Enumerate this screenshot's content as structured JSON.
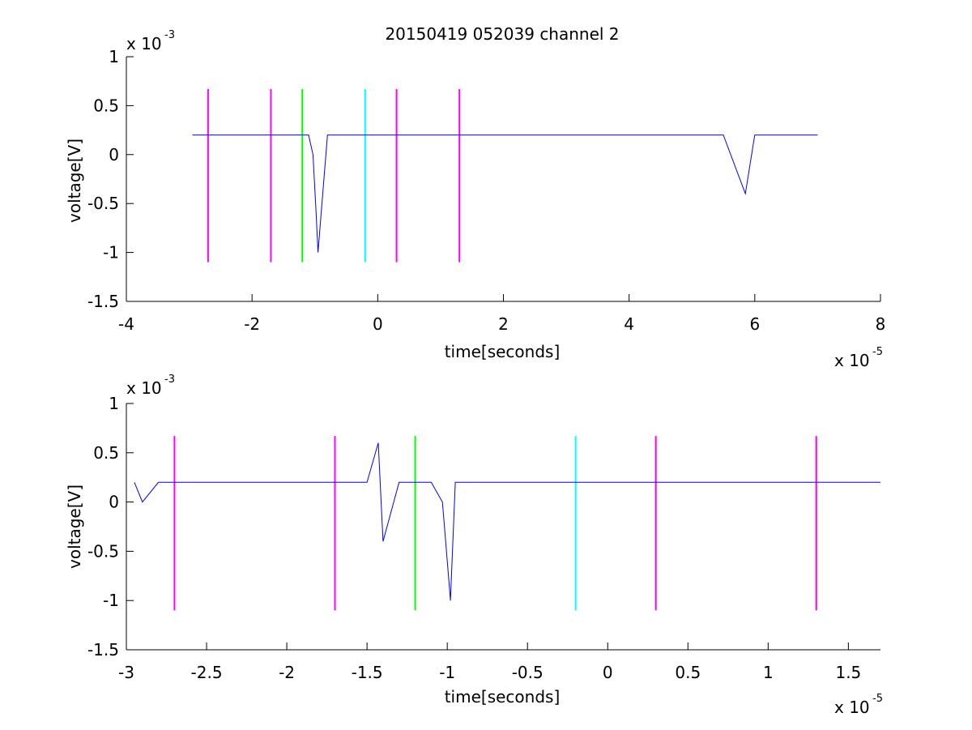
{
  "figure": {
    "title": "20150419 052039 channel 2"
  },
  "colors": {
    "signal": "#0000ff",
    "magenta": "#ff00ff",
    "green": "#00ff00",
    "cyan": "#00ffff",
    "axes": "#000000"
  },
  "chart_data": [
    {
      "type": "line",
      "title": "20150419 052039 channel 2",
      "xlabel": "time[seconds]",
      "ylabel": "voltage[V]",
      "x_multiplier": "x 10",
      "x_exponent": "-5",
      "y_multiplier": "x 10",
      "y_exponent": "-3",
      "xlim": [
        -4e-05,
        8e-05
      ],
      "ylim": [
        -0.0015,
        0.001
      ],
      "xticks": [
        -4e-05,
        -2e-05,
        0,
        2e-05,
        4e-05,
        6e-05,
        8e-05
      ],
      "xtick_labels": [
        "-4",
        "-2",
        "0",
        "2",
        "4",
        "6",
        "8"
      ],
      "yticks": [
        -0.0015,
        -0.001,
        -0.0005,
        0,
        0.0005,
        0.001
      ],
      "ytick_labels": [
        "-1.5",
        "-1",
        "-0.5",
        "0",
        "0.5",
        "1"
      ],
      "grid": false,
      "series": [
        {
          "color": "#0000ff",
          "x": [
            -2.95e-05,
            -2.7e-05,
            -2.5e-05,
            -2.2e-05,
            -2e-05,
            -1.7e-05,
            -1.55e-05,
            -1.43e-05,
            -1.3e-05,
            -1.2e-05,
            -1.1e-05,
            -1.03e-05,
            -9.8e-06,
            -9.5e-06,
            -8e-06,
            -6e-06,
            -4e-06,
            -2e-06,
            0,
            2e-06,
            5e-06,
            1e-05,
            1.5e-05,
            2e-05,
            2.5e-05,
            3e-05,
            3.5e-05,
            4e-05,
            4.5e-05,
            5e-05,
            5.5e-05,
            5.85e-05,
            6e-05,
            6.5e-05,
            7e-05
          ],
          "y": [
            0.0002,
            0.0002,
            0.0002,
            0.0002,
            0.0002,
            0.0002,
            0.0002,
            0.0002,
            0.0002,
            0.0002,
            0.0002,
            0.0,
            -0.0006,
            -0.001,
            0.0002,
            0.0002,
            0.0002,
            0.0002,
            0.0002,
            0.0002,
            0.0002,
            0.0002,
            0.0002,
            0.0002,
            0.0002,
            0.0002,
            0.0002,
            0.0002,
            0.0002,
            0.0002,
            0.0002,
            -0.0004,
            0.0002,
            0.0002,
            0.0002
          ]
        }
      ],
      "markers": [
        {
          "x": -2.7e-05,
          "color": "#ff00ff"
        },
        {
          "x": -1.7e-05,
          "color": "#ff00ff"
        },
        {
          "x": -1.2e-05,
          "color": "#00ff00"
        },
        {
          "x": -2e-06,
          "color": "#00ffff"
        },
        {
          "x": 3e-06,
          "color": "#ff00ff"
        },
        {
          "x": 1.3e-05,
          "color": "#ff00ff"
        }
      ],
      "marker_range": [
        -0.0011,
        0.00067
      ]
    },
    {
      "type": "line",
      "xlabel": "time[seconds]",
      "ylabel": "voltage[V]",
      "x_multiplier": "x 10",
      "x_exponent": "-5",
      "y_multiplier": "x 10",
      "y_exponent": "-3",
      "xlim": [
        -3e-05,
        1.7e-05
      ],
      "ylim": [
        -0.0015,
        0.001
      ],
      "xticks": [
        -3e-05,
        -2.5e-05,
        -2e-05,
        -1.5e-05,
        -1e-05,
        -5e-06,
        0,
        5e-06,
        1e-05,
        1.5e-05
      ],
      "xtick_labels": [
        "-3",
        "-2.5",
        "-2",
        "-1.5",
        "-1",
        "-0.5",
        "0",
        "0.5",
        "1",
        "1.5"
      ],
      "yticks": [
        -0.0015,
        -0.001,
        -0.0005,
        0,
        0.0005,
        0.001
      ],
      "ytick_labels": [
        "-1.5",
        "-1",
        "-0.5",
        "0",
        "0.5",
        "1"
      ],
      "grid": false,
      "series": [
        {
          "color": "#0000ff",
          "x": [
            -2.95e-05,
            -2.9e-05,
            -2.8e-05,
            -2.7e-05,
            -2.6e-05,
            -2.5e-05,
            -2.3e-05,
            -2.1e-05,
            -1.9e-05,
            -1.7e-05,
            -1.5e-05,
            -1.43e-05,
            -1.4e-05,
            -1.3e-05,
            -1.2e-05,
            -1.1e-05,
            -1.03e-05,
            -1e-05,
            -9.8e-06,
            -9.5e-06,
            -8e-06,
            -6e-06,
            -4e-06,
            -2e-06,
            0,
            2e-06,
            4e-06,
            6e-06,
            8e-06,
            1e-05,
            1.2e-05,
            1.4e-05,
            1.6e-05,
            1.7e-05
          ],
          "y": [
            0.0002,
            0.0,
            0.0002,
            0.0002,
            0.0002,
            0.0002,
            0.0002,
            0.0002,
            0.0002,
            0.0002,
            0.0002,
            0.0006,
            -0.0004,
            0.0002,
            0.0002,
            0.0002,
            0.0,
            -0.0006,
            -0.001,
            0.0002,
            0.0002,
            0.0002,
            0.0002,
            0.0002,
            0.0002,
            0.0002,
            0.0002,
            0.0002,
            0.0002,
            0.0002,
            0.0002,
            0.0002,
            0.0002,
            0.0002
          ]
        }
      ],
      "markers": [
        {
          "x": -2.7e-05,
          "color": "#ff00ff"
        },
        {
          "x": -1.7e-05,
          "color": "#ff00ff"
        },
        {
          "x": -1.2e-05,
          "color": "#00ff00"
        },
        {
          "x": -2e-06,
          "color": "#00ffff"
        },
        {
          "x": 3e-06,
          "color": "#ff00ff"
        },
        {
          "x": 1.3e-05,
          "color": "#ff00ff"
        }
      ],
      "marker_range": [
        -0.0011,
        0.00067
      ]
    }
  ]
}
